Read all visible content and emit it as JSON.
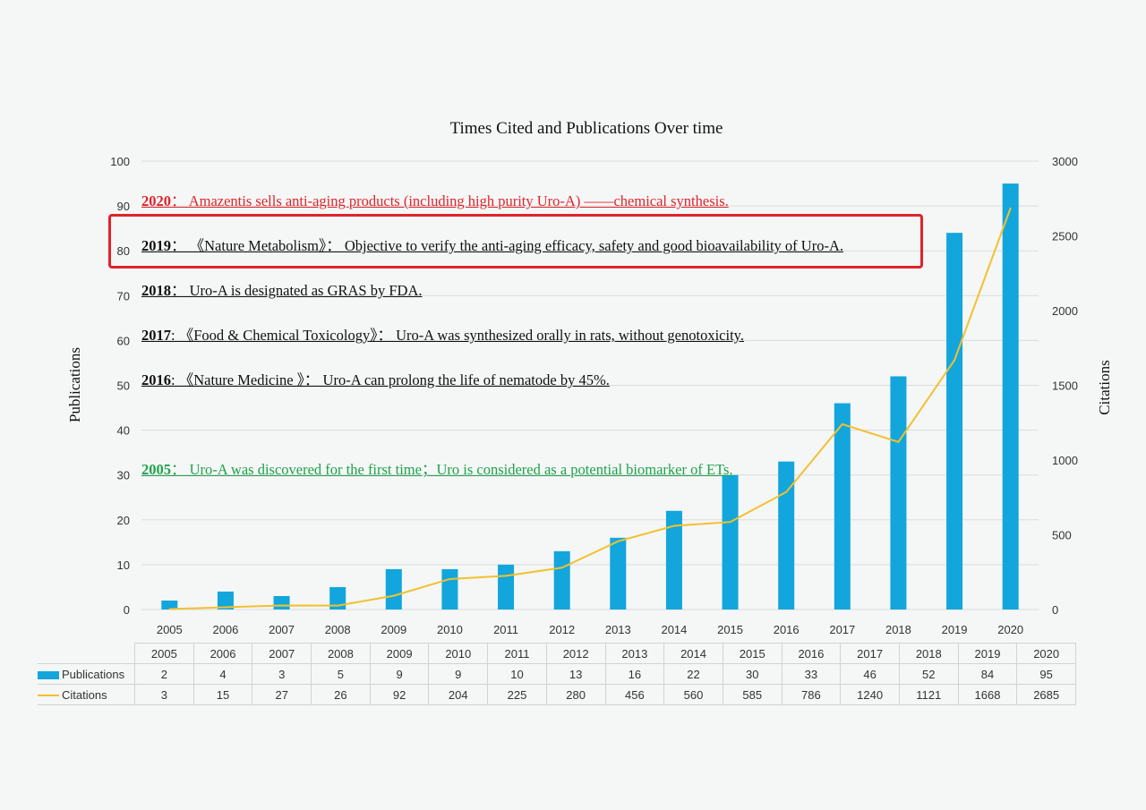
{
  "chart_data": {
    "type": "bar",
    "title": "Times Cited and Publications Over time",
    "categories": [
      "2005",
      "2006",
      "2007",
      "2008",
      "2009",
      "2010",
      "2011",
      "2012",
      "2013",
      "2014",
      "2015",
      "2016",
      "2017",
      "2018",
      "2019",
      "2020"
    ],
    "series": [
      {
        "name": "Publications",
        "type": "bar",
        "axis": "left",
        "color": "#12a6dc",
        "values": [
          2,
          4,
          3,
          5,
          9,
          9,
          10,
          13,
          16,
          22,
          30,
          33,
          46,
          52,
          84,
          95
        ]
      },
      {
        "name": "Citations",
        "type": "line",
        "axis": "right",
        "color": "#f2c12e",
        "values": [
          3,
          15,
          27,
          26,
          92,
          204,
          225,
          280,
          456,
          560,
          585,
          786,
          1240,
          1121,
          1668,
          2685
        ]
      }
    ],
    "ylabel": "Publications",
    "y2label": "Citations",
    "ylim": [
      0,
      100
    ],
    "y2lim": [
      0,
      3000
    ],
    "yticks": [
      0,
      10,
      20,
      30,
      40,
      50,
      60,
      70,
      80,
      90,
      100
    ],
    "y2ticks": [
      0,
      500,
      1000,
      1500,
      2000,
      2500,
      3000
    ],
    "grid": true,
    "legend": "table-below",
    "annotations": [
      {
        "year": "2020",
        "sep": "：",
        "text": "Amazentis sells anti-aging products (including high purity Uro-A) ——chemical synthesis.",
        "color": "red"
      },
      {
        "year": "2019",
        "sep": "：",
        "text": "《Nature Metabolism》：  Objective to verify the anti-aging efficacy, safety and good bioavailability of Uro-A.",
        "color": "black",
        "highlighted": true
      },
      {
        "year": "2018",
        "sep": "：",
        "text": "Uro-A is designated as GRAS by FDA.",
        "color": "black"
      },
      {
        "year": "2017",
        "sep": ":",
        "text": "《Food & Chemical Toxicology》：  Uro-A was synthesized orally in rats, without genotoxicity.",
        "color": "black"
      },
      {
        "year": "2016",
        "sep": ":",
        "text": "《Nature Medicine 》：  Uro-A can prolong the life of nematode by 45%.",
        "color": "black"
      },
      {
        "year": "2005",
        "sep": "：",
        "text": "Uro-A was discovered for the first time；Uro is considered as a potential biomarker of ETs.",
        "color": "green"
      }
    ]
  }
}
